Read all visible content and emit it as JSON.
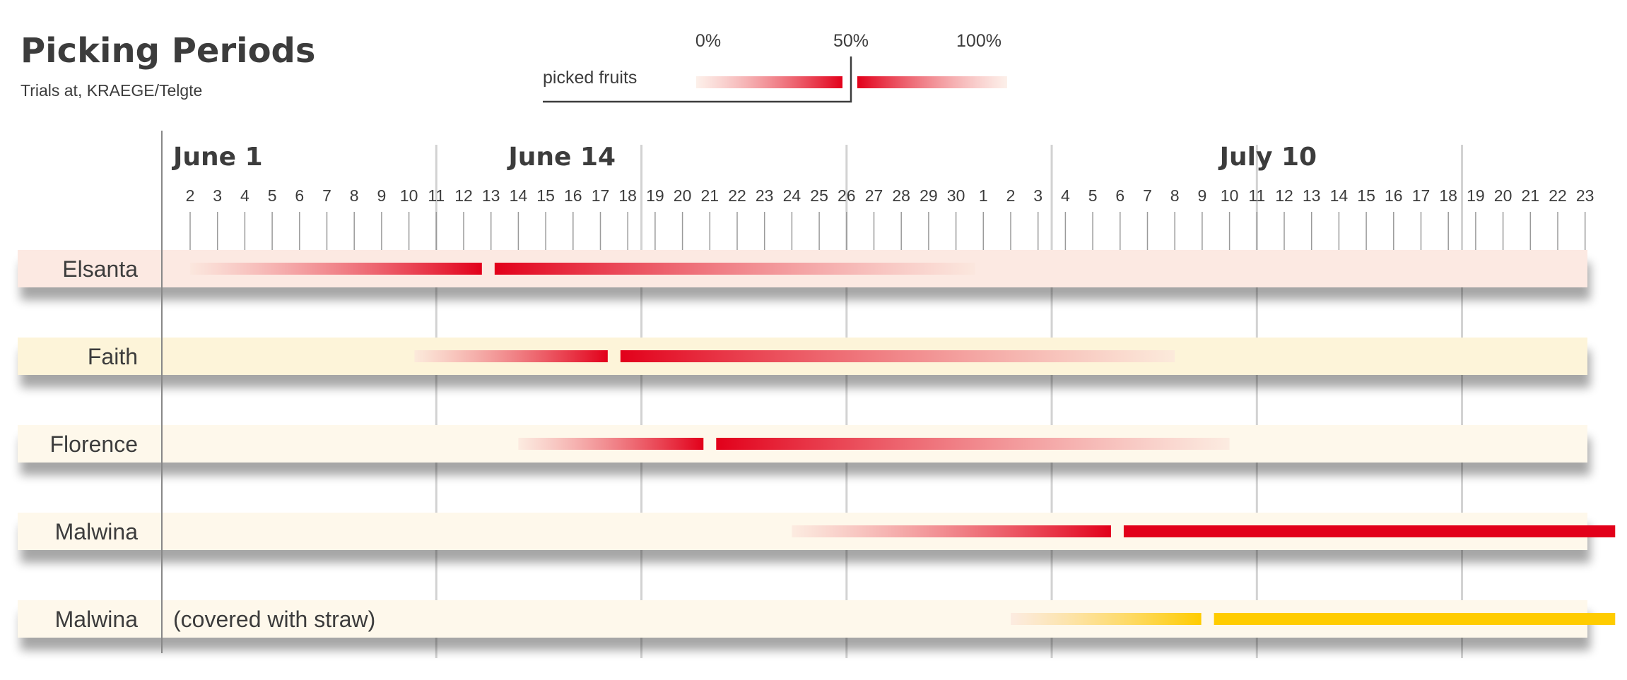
{
  "chart_data": {
    "type": "gantt",
    "title": "Picking Periods",
    "subtitle": "Trials at, KRAEGE/Telgte",
    "legend": {
      "label": "picked fruits",
      "scale_labels": [
        "0%",
        "50%",
        "100%"
      ],
      "colors": {
        "red": "#e2001a",
        "yellow": "#ffcc00",
        "light": "#fbe6dc"
      }
    },
    "axis": {
      "unit": "day (1 = June 1, 31 = July 1)",
      "range": [
        2,
        53
      ],
      "tick_labels": [
        "2",
        "3",
        "4",
        "5",
        "6",
        "7",
        "8",
        "9",
        "10",
        "11",
        "12",
        "13",
        "14",
        "15",
        "16",
        "17",
        "18",
        "19",
        "20",
        "21",
        "22",
        "23",
        "24",
        "25",
        "26",
        "27",
        "28",
        "29",
        "30",
        "1",
        "2",
        "3",
        "4",
        "5",
        "6",
        "7",
        "8",
        "9",
        "10",
        "11",
        "12",
        "13",
        "14",
        "15",
        "16",
        "17",
        "18",
        "19",
        "20",
        "21",
        "22",
        "23"
      ],
      "month_labels": [
        {
          "text": "June 1",
          "day": 1
        },
        {
          "text": "June 14",
          "day": 14
        },
        {
          "text": "July 10",
          "day": 40
        }
      ]
    },
    "series": [
      {
        "name": "Elsanta",
        "note": "",
        "band_color": "#fce9e2",
        "bar_color": "#e2001a",
        "start": 2,
        "peak": 12.9,
        "end": 30.7
      },
      {
        "name": "Faith",
        "note": "",
        "band_color": "#fdf4d9",
        "bar_color": "#e2001a",
        "start": 10.2,
        "peak": 17.5,
        "end": 38
      },
      {
        "name": "Florence",
        "note": "",
        "band_color": "#fef8eb",
        "bar_color": "#e2001a",
        "start": 14,
        "peak": 21,
        "end": 40
      },
      {
        "name": "Malwina",
        "note": "",
        "band_color": "#fef8eb",
        "bar_color": "#e2001a",
        "start": 24,
        "peak": 35.9,
        "end": 54.1
      },
      {
        "name": "Malwina",
        "note": "(covered with straw)",
        "band_color": "#fef8eb",
        "bar_color": "#ffcc00",
        "start": 32,
        "peak": 39.2,
        "end": 54.1
      }
    ]
  }
}
